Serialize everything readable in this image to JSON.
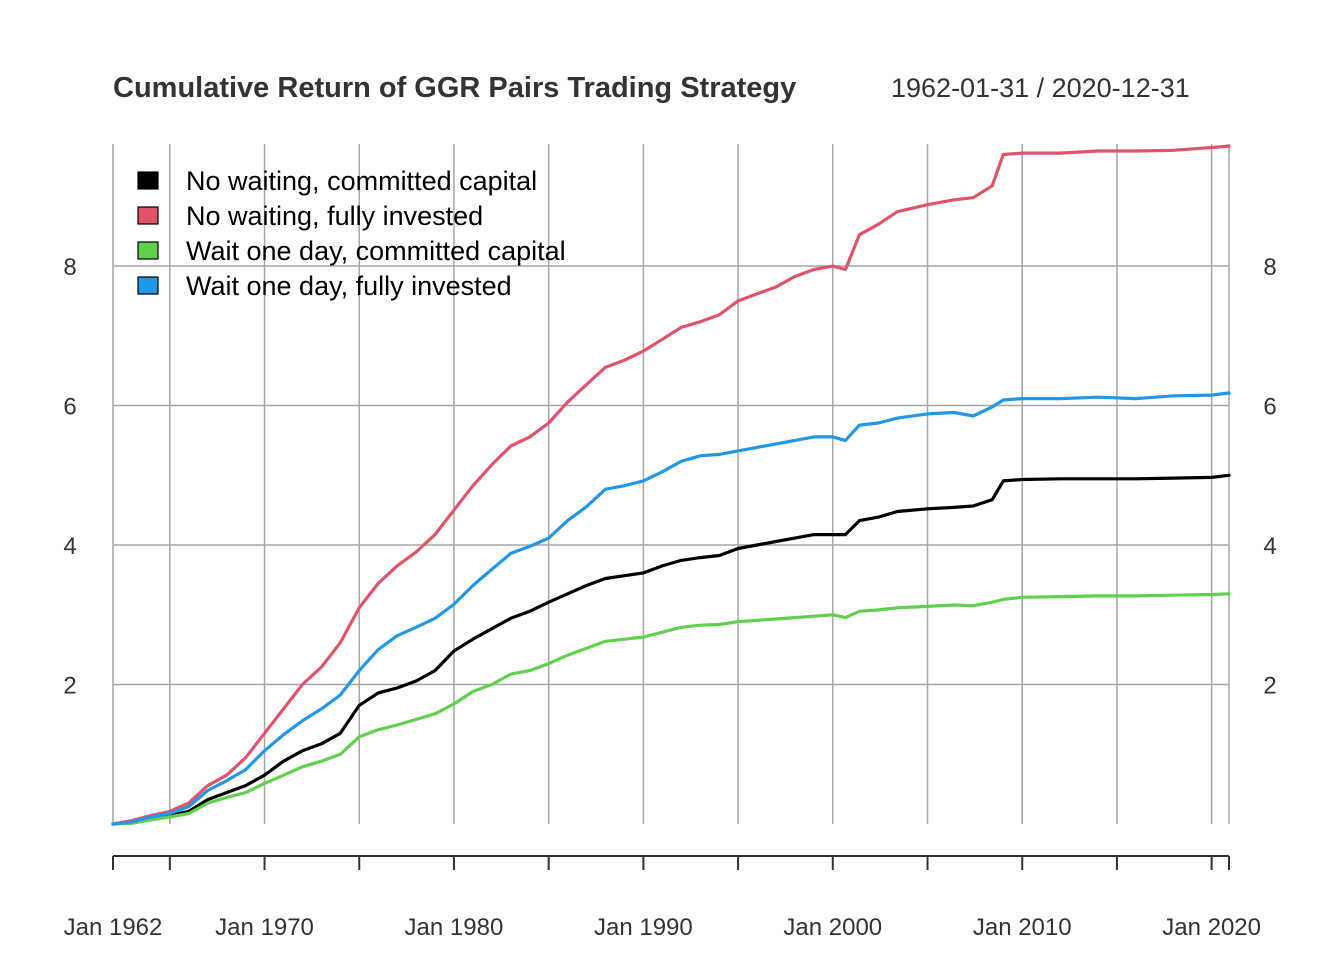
{
  "chart_data": {
    "type": "line",
    "title": "Cumulative Return of GGR Pairs Trading Strategy",
    "date_range_label": "1962-01-31 / 2020-12-31",
    "x_range": [
      "1962-01-31",
      "2020-12-31"
    ],
    "ylim": [
      0,
      9.75
    ],
    "y_ticks": [
      2,
      4,
      6,
      8
    ],
    "y_tick_labels": [
      "2",
      "4",
      "6",
      "8"
    ],
    "x_ticks": [
      {
        "date": "1962-01-31",
        "label": "Jan 1962"
      },
      {
        "date": "1965-01-31",
        "label": ""
      },
      {
        "date": "1970-01-31",
        "label": "Jan 1970"
      },
      {
        "date": "1975-01-31",
        "label": ""
      },
      {
        "date": "1980-01-31",
        "label": "Jan 1980"
      },
      {
        "date": "1985-01-31",
        "label": ""
      },
      {
        "date": "1990-01-31",
        "label": "Jan 1990"
      },
      {
        "date": "1995-01-31",
        "label": ""
      },
      {
        "date": "2000-01-31",
        "label": "Jan 2000"
      },
      {
        "date": "2005-01-31",
        "label": ""
      },
      {
        "date": "2010-01-31",
        "label": "Jan 2010"
      },
      {
        "date": "2015-01-31",
        "label": ""
      },
      {
        "date": "2020-01-31",
        "label": "Jan 2020"
      },
      {
        "date": "2020-12-31",
        "label": ""
      }
    ],
    "grid": true,
    "legend_position": "top-left",
    "series": [
      {
        "name": "No waiting, committed capital",
        "color": "#000000",
        "points": [
          [
            "1962-01-31",
            0.0
          ],
          [
            "1963-01-31",
            0.02
          ],
          [
            "1964-01-31",
            0.08
          ],
          [
            "1965-01-31",
            0.12
          ],
          [
            "1966-01-31",
            0.18
          ],
          [
            "1967-01-31",
            0.35
          ],
          [
            "1968-01-31",
            0.45
          ],
          [
            "1969-01-31",
            0.55
          ],
          [
            "1970-01-31",
            0.7
          ],
          [
            "1971-01-31",
            0.9
          ],
          [
            "1972-01-31",
            1.05
          ],
          [
            "1973-01-31",
            1.15
          ],
          [
            "1974-01-31",
            1.3
          ],
          [
            "1975-01-31",
            1.7
          ],
          [
            "1976-01-31",
            1.88
          ],
          [
            "1977-01-31",
            1.95
          ],
          [
            "1978-01-31",
            2.05
          ],
          [
            "1979-01-31",
            2.2
          ],
          [
            "1980-01-31",
            2.48
          ],
          [
            "1981-01-31",
            2.65
          ],
          [
            "1982-01-31",
            2.8
          ],
          [
            "1983-01-31",
            2.95
          ],
          [
            "1984-01-31",
            3.05
          ],
          [
            "1985-01-31",
            3.18
          ],
          [
            "1986-01-31",
            3.3
          ],
          [
            "1987-01-31",
            3.42
          ],
          [
            "1988-01-31",
            3.52
          ],
          [
            "1989-01-31",
            3.56
          ],
          [
            "1990-01-31",
            3.6
          ],
          [
            "1991-01-31",
            3.7
          ],
          [
            "1992-01-31",
            3.78
          ],
          [
            "1993-01-31",
            3.82
          ],
          [
            "1994-01-31",
            3.85
          ],
          [
            "1995-01-31",
            3.95
          ],
          [
            "1996-01-31",
            4.0
          ],
          [
            "1997-01-31",
            4.05
          ],
          [
            "1998-01-31",
            4.1
          ],
          [
            "1999-01-31",
            4.15
          ],
          [
            "2000-01-31",
            4.15
          ],
          [
            "2000-09-30",
            4.15
          ],
          [
            "2001-06-30",
            4.35
          ],
          [
            "2002-06-30",
            4.4
          ],
          [
            "2003-06-30",
            4.48
          ],
          [
            "2005-01-31",
            4.52
          ],
          [
            "2006-06-30",
            4.54
          ],
          [
            "2007-06-30",
            4.56
          ],
          [
            "2008-06-30",
            4.65
          ],
          [
            "2009-01-31",
            4.92
          ],
          [
            "2010-01-31",
            4.94
          ],
          [
            "2012-01-31",
            4.95
          ],
          [
            "2014-01-31",
            4.95
          ],
          [
            "2016-01-31",
            4.95
          ],
          [
            "2018-01-31",
            4.96
          ],
          [
            "2020-01-31",
            4.97
          ],
          [
            "2020-12-31",
            5.0
          ]
        ]
      },
      {
        "name": "No waiting, fully invested",
        "color": "#DF536B",
        "points": [
          [
            "1962-01-31",
            0.0
          ],
          [
            "1963-01-31",
            0.05
          ],
          [
            "1964-01-31",
            0.12
          ],
          [
            "1965-01-31",
            0.18
          ],
          [
            "1966-01-31",
            0.3
          ],
          [
            "1967-01-31",
            0.55
          ],
          [
            "1968-01-31",
            0.7
          ],
          [
            "1969-01-31",
            0.95
          ],
          [
            "1970-01-31",
            1.3
          ],
          [
            "1971-01-31",
            1.65
          ],
          [
            "1972-01-31",
            2.0
          ],
          [
            "1973-01-31",
            2.25
          ],
          [
            "1974-01-31",
            2.6
          ],
          [
            "1975-01-31",
            3.1
          ],
          [
            "1976-01-31",
            3.45
          ],
          [
            "1977-01-31",
            3.7
          ],
          [
            "1978-01-31",
            3.9
          ],
          [
            "1979-01-31",
            4.15
          ],
          [
            "1980-01-31",
            4.5
          ],
          [
            "1981-01-31",
            4.85
          ],
          [
            "1982-01-31",
            5.15
          ],
          [
            "1983-01-31",
            5.42
          ],
          [
            "1984-01-31",
            5.55
          ],
          [
            "1985-01-31",
            5.75
          ],
          [
            "1986-01-31",
            6.05
          ],
          [
            "1987-01-31",
            6.3
          ],
          [
            "1988-01-31",
            6.55
          ],
          [
            "1989-01-31",
            6.65
          ],
          [
            "1990-01-31",
            6.78
          ],
          [
            "1991-01-31",
            6.95
          ],
          [
            "1992-01-31",
            7.12
          ],
          [
            "1993-01-31",
            7.2
          ],
          [
            "1994-01-31",
            7.3
          ],
          [
            "1995-01-31",
            7.5
          ],
          [
            "1996-01-31",
            7.6
          ],
          [
            "1997-01-31",
            7.7
          ],
          [
            "1998-01-31",
            7.85
          ],
          [
            "1999-01-31",
            7.95
          ],
          [
            "2000-01-31",
            8.0
          ],
          [
            "2000-09-30",
            7.95
          ],
          [
            "2001-06-30",
            8.45
          ],
          [
            "2002-06-30",
            8.6
          ],
          [
            "2003-06-30",
            8.78
          ],
          [
            "2005-01-31",
            8.88
          ],
          [
            "2006-06-30",
            8.95
          ],
          [
            "2007-06-30",
            8.98
          ],
          [
            "2008-06-30",
            9.15
          ],
          [
            "2009-01-31",
            9.6
          ],
          [
            "2010-01-31",
            9.62
          ],
          [
            "2012-01-31",
            9.62
          ],
          [
            "2014-01-31",
            9.65
          ],
          [
            "2016-01-31",
            9.65
          ],
          [
            "2018-01-31",
            9.66
          ],
          [
            "2020-01-31",
            9.7
          ],
          [
            "2020-12-31",
            9.72
          ]
        ]
      },
      {
        "name": "Wait one day, committed capital",
        "color": "#61D04F",
        "points": [
          [
            "1962-01-31",
            0.0
          ],
          [
            "1963-01-31",
            0.01
          ],
          [
            "1964-01-31",
            0.06
          ],
          [
            "1965-01-31",
            0.1
          ],
          [
            "1966-01-31",
            0.15
          ],
          [
            "1967-01-31",
            0.3
          ],
          [
            "1968-01-31",
            0.38
          ],
          [
            "1969-01-31",
            0.45
          ],
          [
            "1970-01-31",
            0.58
          ],
          [
            "1971-01-31",
            0.7
          ],
          [
            "1972-01-31",
            0.82
          ],
          [
            "1973-01-31",
            0.9
          ],
          [
            "1974-01-31",
            1.0
          ],
          [
            "1975-01-31",
            1.25
          ],
          [
            "1976-01-31",
            1.35
          ],
          [
            "1977-01-31",
            1.42
          ],
          [
            "1978-01-31",
            1.5
          ],
          [
            "1979-01-31",
            1.58
          ],
          [
            "1980-01-31",
            1.72
          ],
          [
            "1981-01-31",
            1.9
          ],
          [
            "1982-01-31",
            2.0
          ],
          [
            "1983-01-31",
            2.15
          ],
          [
            "1984-01-31",
            2.2
          ],
          [
            "1985-01-31",
            2.3
          ],
          [
            "1986-01-31",
            2.42
          ],
          [
            "1987-01-31",
            2.52
          ],
          [
            "1988-01-31",
            2.62
          ],
          [
            "1989-01-31",
            2.65
          ],
          [
            "1990-01-31",
            2.68
          ],
          [
            "1991-01-31",
            2.75
          ],
          [
            "1992-01-31",
            2.82
          ],
          [
            "1993-01-31",
            2.85
          ],
          [
            "1994-01-31",
            2.86
          ],
          [
            "1995-01-31",
            2.9
          ],
          [
            "1996-01-31",
            2.92
          ],
          [
            "1997-01-31",
            2.94
          ],
          [
            "1998-01-31",
            2.96
          ],
          [
            "1999-01-31",
            2.98
          ],
          [
            "2000-01-31",
            3.0
          ],
          [
            "2000-09-30",
            2.96
          ],
          [
            "2001-06-30",
            3.05
          ],
          [
            "2002-06-30",
            3.07
          ],
          [
            "2003-06-30",
            3.1
          ],
          [
            "2005-01-31",
            3.12
          ],
          [
            "2006-06-30",
            3.14
          ],
          [
            "2007-06-30",
            3.13
          ],
          [
            "2008-06-30",
            3.18
          ],
          [
            "2009-01-31",
            3.22
          ],
          [
            "2010-01-31",
            3.25
          ],
          [
            "2012-01-31",
            3.26
          ],
          [
            "2014-01-31",
            3.27
          ],
          [
            "2016-01-31",
            3.27
          ],
          [
            "2018-01-31",
            3.28
          ],
          [
            "2020-01-31",
            3.29
          ],
          [
            "2020-12-31",
            3.3
          ]
        ]
      },
      {
        "name": "Wait one day, fully invested",
        "color": "#2297E6",
        "points": [
          [
            "1962-01-31",
            0.0
          ],
          [
            "1963-01-31",
            0.03
          ],
          [
            "1964-01-31",
            0.1
          ],
          [
            "1965-01-31",
            0.15
          ],
          [
            "1966-01-31",
            0.25
          ],
          [
            "1967-01-31",
            0.48
          ],
          [
            "1968-01-31",
            0.62
          ],
          [
            "1969-01-31",
            0.78
          ],
          [
            "1970-01-31",
            1.05
          ],
          [
            "1971-01-31",
            1.28
          ],
          [
            "1972-01-31",
            1.48
          ],
          [
            "1973-01-31",
            1.65
          ],
          [
            "1974-01-31",
            1.85
          ],
          [
            "1975-01-31",
            2.2
          ],
          [
            "1976-01-31",
            2.5
          ],
          [
            "1977-01-31",
            2.7
          ],
          [
            "1978-01-31",
            2.82
          ],
          [
            "1979-01-31",
            2.95
          ],
          [
            "1980-01-31",
            3.15
          ],
          [
            "1981-01-31",
            3.42
          ],
          [
            "1982-01-31",
            3.65
          ],
          [
            "1983-01-31",
            3.88
          ],
          [
            "1984-01-31",
            3.98
          ],
          [
            "1985-01-31",
            4.1
          ],
          [
            "1986-01-31",
            4.35
          ],
          [
            "1987-01-31",
            4.55
          ],
          [
            "1988-01-31",
            4.8
          ],
          [
            "1989-01-31",
            4.85
          ],
          [
            "1990-01-31",
            4.92
          ],
          [
            "1991-01-31",
            5.05
          ],
          [
            "1992-01-31",
            5.2
          ],
          [
            "1993-01-31",
            5.28
          ],
          [
            "1994-01-31",
            5.3
          ],
          [
            "1995-01-31",
            5.35
          ],
          [
            "1996-01-31",
            5.4
          ],
          [
            "1997-01-31",
            5.45
          ],
          [
            "1998-01-31",
            5.5
          ],
          [
            "1999-01-31",
            5.55
          ],
          [
            "2000-01-31",
            5.55
          ],
          [
            "2000-09-30",
            5.5
          ],
          [
            "2001-06-30",
            5.72
          ],
          [
            "2002-06-30",
            5.75
          ],
          [
            "2003-06-30",
            5.82
          ],
          [
            "2005-01-31",
            5.88
          ],
          [
            "2006-06-30",
            5.9
          ],
          [
            "2007-06-30",
            5.85
          ],
          [
            "2008-06-30",
            5.98
          ],
          [
            "2009-01-31",
            6.08
          ],
          [
            "2010-01-31",
            6.1
          ],
          [
            "2012-01-31",
            6.1
          ],
          [
            "2014-01-31",
            6.12
          ],
          [
            "2016-01-31",
            6.1
          ],
          [
            "2018-01-31",
            6.14
          ],
          [
            "2020-01-31",
            6.15
          ],
          [
            "2020-12-31",
            6.18
          ]
        ]
      }
    ]
  }
}
